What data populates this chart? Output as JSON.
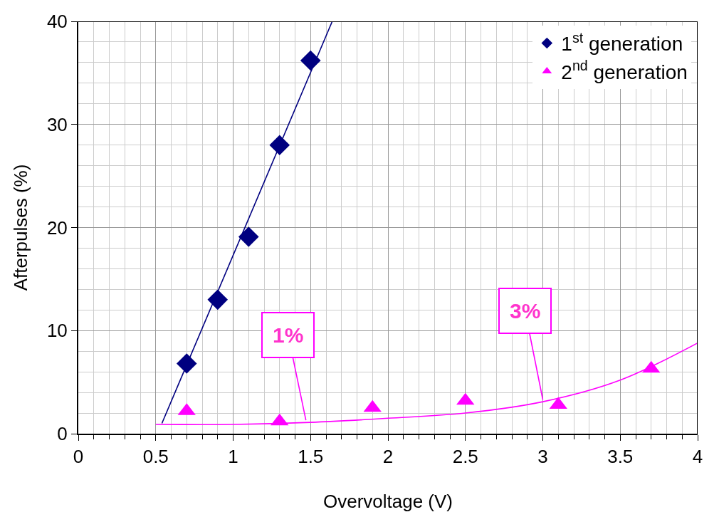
{
  "chart_data": {
    "type": "scatter",
    "xlabel": "Overvoltage (V)",
    "ylabel": "Afterpulses (%)",
    "xlim": [
      0,
      4
    ],
    "xticks": [
      0,
      0.5,
      1,
      1.5,
      2,
      2.5,
      3,
      3.5,
      4
    ],
    "ylim": [
      0,
      40
    ],
    "yticks": [
      0,
      10,
      20,
      30,
      40
    ],
    "grid": true,
    "legend": "top right",
    "series": [
      {
        "name": "1$^{st}$ generation",
        "color": "#000080",
        "marker": "diamond",
        "x": [
          0.7,
          0.9,
          1.1,
          1.3,
          1.5
        ],
        "values": [
          6.8,
          13,
          19.1,
          28,
          36.2
        ]
      },
      {
        "name": "2$^{nd}$ generation",
        "color": "#ff00ff",
        "marker": "triangle",
        "x": [
          0.7,
          1.3,
          1.9,
          2.5,
          3.1,
          3.7
        ],
        "values": [
          2.2,
          1.2,
          2.5,
          3.2,
          2.8,
          6.3
        ]
      },
      {
        "type": "line",
        "color": "#000080",
        "marker": "none",
        "x": [
          0.54,
          1.64
        ],
        "values": [
          1,
          40
        ]
      },
      {
        "type": "line",
        "color": "#ff00ff",
        "marker": "none",
        "x": [
          0.5,
          1.0,
          1.5,
          2.0,
          2.5,
          3.0,
          3.5,
          4.0
        ],
        "values": [
          0.9,
          0.9,
          1.1,
          1.5,
          2.0,
          3.1,
          5.2,
          8.8
        ]
      }
    ],
    "annotations": [
      {
        "text": "1%",
        "x": 1.47,
        "y": 1.3
      },
      {
        "text": "3%",
        "x": 3.0,
        "y": 3.3
      }
    ]
  }
}
